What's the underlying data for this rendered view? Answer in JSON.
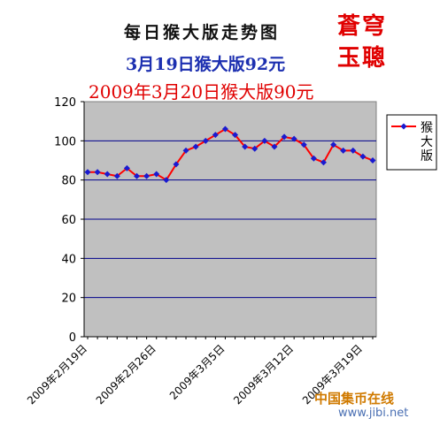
{
  "header": {
    "title": "每日猴大版走势图",
    "subtitle_prev": "3月19日猴大版92元",
    "subtitle_today": "2009年3月20日猴大版90元",
    "stamp_line1": "蒼穹",
    "stamp_line2": "玉聰"
  },
  "watermark": {
    "name": "中国集币在线",
    "url": "www.jibi.net"
  },
  "colors": {
    "plot_bg": "#c0c0c0",
    "gridline": "#00008b",
    "series_line": "#ff0000",
    "series_marker": "#1a1ad0"
  },
  "chart_data": {
    "type": "line",
    "ylim": [
      0,
      120
    ],
    "yticks": [
      0,
      20,
      40,
      60,
      80,
      100,
      120
    ],
    "x_tick_labels": [
      "2009年2月19日",
      "2009年2月26日",
      "2009年3月5日",
      "2009年3月12日",
      "2009年3月19日"
    ],
    "x_tick_positions": [
      0,
      7,
      14,
      21,
      28
    ],
    "legend_position": "right",
    "series": [
      {
        "name": "猴大版",
        "values": [
          84,
          84,
          83,
          82,
          86,
          82,
          82,
          83,
          80,
          88,
          95,
          97,
          100,
          103,
          106,
          103,
          97,
          96,
          100,
          97,
          102,
          101,
          98,
          91,
          89,
          98,
          95,
          95,
          92,
          90
        ]
      }
    ]
  }
}
